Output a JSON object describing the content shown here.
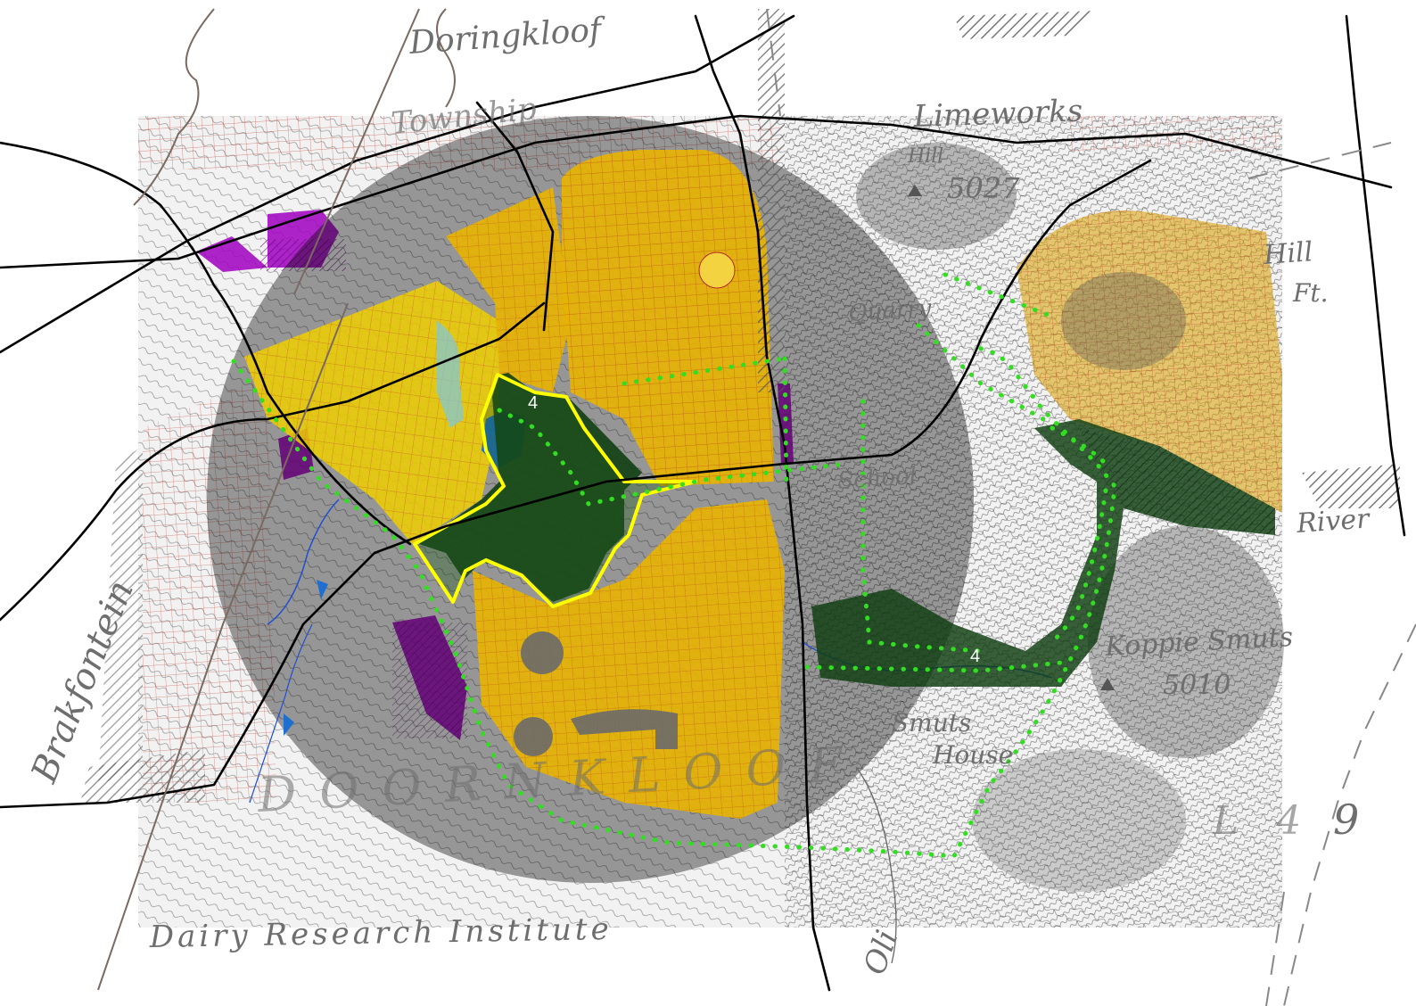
{
  "map": {
    "labels": {
      "doringkloof": "Doringkloof",
      "township": "Township",
      "limeworks": "Limeworks",
      "hill": "Hill",
      "hill_5027": "5027",
      "hill_ft": "Hill",
      "ft": "Ft.",
      "quarry": "Quarry",
      "school": "School",
      "river": "River",
      "koppie_smuts": "Koppie Smuts",
      "koppie_5010": "5010",
      "smuts": "Smuts",
      "house": "House",
      "brakfontein": "Brakfontein",
      "doornkloof": "DOORNKLOOF",
      "dairy": "Dairy Research Institute",
      "number_9": "9",
      "number_l4": "L 4",
      "oli": "Oli"
    },
    "markers": {
      "zone_label_a": "4",
      "zone_label_b": "4"
    },
    "colors": {
      "residential_yellow": "#e8b400",
      "residential_light": "#f0d000",
      "highlight_boundary": "#ffff00",
      "green_zone": "#0e3d10",
      "route_dotted": "#33dd22",
      "industrial": "#a000c0",
      "water": "#1f6fd0",
      "shadow_circle": "#000000",
      "road": "#000000",
      "hand_text": "#6e6e6e",
      "street_lines": "#c03030"
    },
    "icons": {
      "survey_point": "triangle-icon"
    }
  }
}
